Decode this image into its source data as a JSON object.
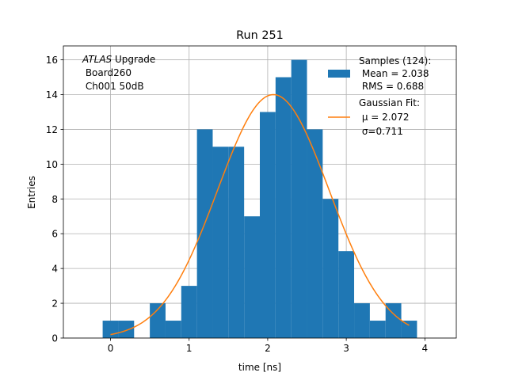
{
  "chart_data": {
    "type": "bar",
    "title": "Run 251",
    "xlabel": "time [ns]",
    "ylabel": "Entries",
    "xlim": [
      -0.6,
      4.4
    ],
    "ylim": [
      0,
      16.8
    ],
    "grid": true,
    "x_ticks": [
      "0",
      "1",
      "2",
      "3",
      "4"
    ],
    "y_ticks": [
      "0",
      "2",
      "4",
      "6",
      "8",
      "10",
      "12",
      "14",
      "16"
    ],
    "annotation": {
      "lines": [
        {
          "italic": "ATLAS",
          "rest": " Upgrade"
        },
        {
          "italic": "",
          "rest": " Board260"
        },
        {
          "italic": "",
          "rest": " Ch001 50dB"
        }
      ]
    },
    "histogram": {
      "name": "Samples (124):",
      "stats": [
        " Mean = 2.038",
        " RMS = 0.688"
      ],
      "color": "#1f77b4",
      "bin_edges": [
        -0.1,
        0.1,
        0.3,
        0.5,
        0.7,
        0.9,
        1.1,
        1.3,
        1.5,
        1.7,
        1.9,
        2.1,
        2.3,
        2.5,
        2.7,
        2.9,
        3.1,
        3.3,
        3.5,
        3.7,
        3.9
      ],
      "counts": [
        1,
        1,
        0,
        2,
        1,
        3,
        12,
        11,
        11,
        7,
        13,
        15,
        16,
        12,
        8,
        5,
        2,
        1,
        2,
        1
      ]
    },
    "fit": {
      "name": "Gaussian Fit:",
      "mu_label": " μ = 2.072",
      "sigma_label": " σ=0.711",
      "mu": 2.072,
      "sigma": 0.711,
      "amplitude": 14.0,
      "x_range": [
        0.0,
        3.8
      ],
      "color": "#ff7f0e"
    },
    "legend_position": "upper right"
  }
}
